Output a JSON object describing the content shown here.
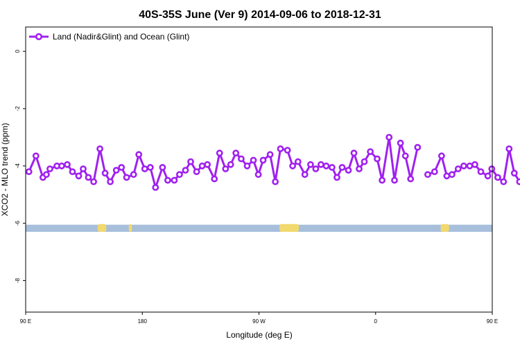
{
  "chart_data": {
    "type": "line",
    "title": "40S-35S June (Ver 9)   2014-09-06 to 2018-12-31",
    "xlabel": "Longitude (deg E)",
    "ylabel": "XCO2 - MLO trend (ppm)",
    "xlim": [
      90,
      450
    ],
    "ylim": [
      -9.1,
      0.85
    ],
    "x_ticks": [
      {
        "value": 90,
        "label": "90 E"
      },
      {
        "value": 180,
        "label": "180"
      },
      {
        "value": 270,
        "label": "90 W"
      },
      {
        "value": 360,
        "label": "0"
      },
      {
        "value": 450,
        "label": "90 E"
      },
      {
        "value": 540,
        "label": "180"
      }
    ],
    "y_ticks": [
      {
        "value": 0,
        "label": "0"
      },
      {
        "value": -2,
        "label": "-2"
      },
      {
        "value": -4,
        "label": "-4"
      },
      {
        "value": -6,
        "label": "-6"
      },
      {
        "value": -8,
        "label": "-8"
      }
    ],
    "legend": {
      "position": "top-left"
    },
    "series": [
      {
        "name": "Land (Nadir&Glint) and Ocean (Glint)",
        "color": "#a020f0",
        "segments": [
          [
            [
              92.5,
              -4.2
            ],
            [
              97.9,
              -3.65
            ],
            [
              103.3,
              -4.4
            ],
            [
              106.0,
              -4.3
            ],
            [
              108.7,
              -4.1
            ],
            [
              114.1,
              -4.0
            ],
            [
              117.8,
              -4.0
            ],
            [
              122.1,
              -3.95
            ],
            [
              126.1,
              -4.2
            ],
            [
              130.9,
              -4.35
            ],
            [
              134.4,
              -4.1
            ],
            [
              138.4,
              -4.4
            ],
            [
              142.5,
              -4.55
            ],
            [
              147.3,
              -3.4
            ],
            [
              151.3,
              -4.25
            ],
            [
              155.3,
              -4.55
            ],
            [
              159.9,
              -4.15
            ],
            [
              163.9,
              -4.05
            ],
            [
              167.9,
              -4.4
            ],
            [
              173.3,
              -4.3
            ],
            [
              177.3,
              -3.6
            ],
            [
              181.9,
              -4.1
            ],
            [
              186.2,
              -4.05
            ],
            [
              190.2,
              -4.75
            ],
            [
              195.6,
              -4.05
            ],
            [
              199.6,
              -4.5
            ],
            [
              204.7,
              -4.5
            ],
            [
              208.7,
              -4.3
            ],
            [
              213.3,
              -4.15
            ],
            [
              217.3,
              -3.85
            ],
            [
              221.9,
              -4.2
            ],
            [
              226.2,
              -4.0
            ],
            [
              230.2,
              -3.95
            ],
            [
              235.6,
              -4.45
            ],
            [
              239.6,
              -3.55
            ],
            [
              244.2,
              -4.1
            ],
            [
              248.2,
              -3.95
            ],
            [
              252.2,
              -3.55
            ],
            [
              256.3,
              -3.75
            ],
            [
              260.9,
              -4.0
            ],
            [
              265.7,
              -3.8
            ],
            [
              269.5,
              -4.3
            ],
            [
              273.2,
              -3.8
            ],
            [
              278.6,
              -3.6
            ],
            [
              282.6,
              -4.55
            ],
            [
              286.6,
              -3.4
            ],
            [
              292.0,
              -3.45
            ],
            [
              296.0,
              -4.0
            ],
            [
              300.1,
              -3.85
            ],
            [
              305.4,
              -4.3
            ],
            [
              309.8,
              -3.95
            ],
            [
              313.8,
              -4.1
            ],
            [
              317.8,
              -3.95
            ],
            [
              321.9,
              -4.0
            ],
            [
              326.4,
              -4.05
            ],
            [
              330.2,
              -4.4
            ],
            [
              334.2,
              -4.05
            ],
            [
              339.0,
              -4.15
            ],
            [
              343.3,
              -3.55
            ],
            [
              347.3,
              -4.1
            ],
            [
              351.3,
              -3.85
            ],
            [
              355.9,
              -3.5
            ],
            [
              361.2,
              -3.75
            ],
            [
              365.0,
              -4.5
            ],
            [
              370.4,
              -3.0
            ],
            [
              374.6,
              -4.5
            ],
            [
              379.2,
              -3.2
            ],
            [
              383.0,
              -3.65
            ],
            [
              387.0,
              -4.45
            ],
            [
              392.4,
              -3.35
            ]
          ],
          [
            [
              400.2,
              -4.3
            ],
            [
              405.5,
              -4.2
            ],
            [
              410.9,
              -3.65
            ],
            [
              414.9,
              -4.35
            ],
            [
              418.9,
              -4.3
            ],
            [
              423.7,
              -4.1
            ],
            [
              428.0,
              -4.0
            ],
            [
              432.6,
              -4.0
            ],
            [
              436.6,
              -3.95
            ],
            [
              441.2,
              -4.2
            ],
            [
              446.6,
              -4.35
            ],
            [
              449.6,
              -4.1
            ],
            [
              454.2,
              -4.4
            ],
            [
              458.7,
              -4.55
            ],
            [
              463.0,
              -3.4
            ],
            [
              467.0,
              -4.25
            ],
            [
              471.1,
              -4.55
            ],
            [
              475.6,
              -4.2
            ],
            [
              480.5,
              -4.05
            ]
          ]
        ]
      }
    ],
    "land_band": {
      "y_top": -6.05,
      "y_bottom": -6.3,
      "ocean_color": "#a7bfdb",
      "land_color": "#f2d96e",
      "land_spans": [
        [
          145.5,
          152.2
        ],
        [
          169.6,
          172.0
        ],
        [
          285.8,
          300.8
        ],
        [
          410.2,
          416.7
        ],
        [
          472.0,
          474.6
        ]
      ]
    }
  }
}
